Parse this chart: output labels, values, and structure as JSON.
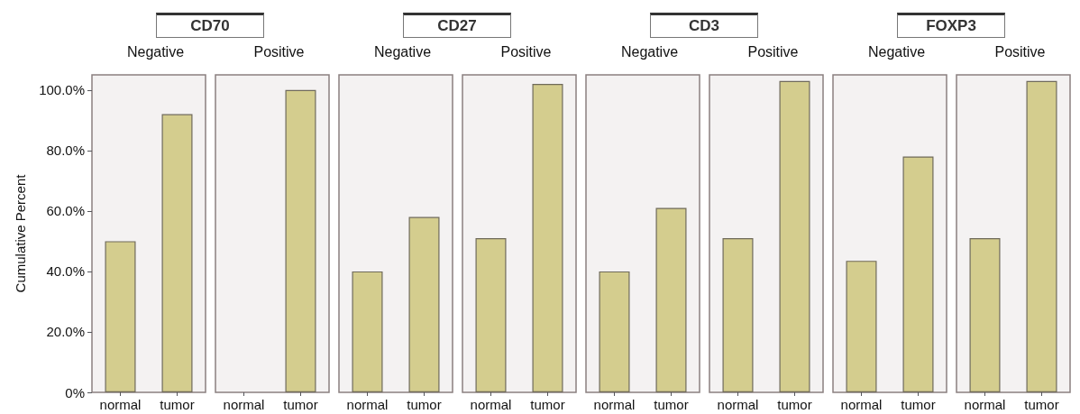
{
  "chart_data": [
    {
      "type": "bar",
      "title": "CD70",
      "subtitle": "Negative",
      "ylabel": "Cumulative Percent",
      "categories": [
        "normal",
        "tumor"
      ],
      "values": [
        50,
        92
      ],
      "color": "#d4cd8e",
      "ylim": [
        0,
        105
      ],
      "yticks": [
        {
          "value": 0,
          "label": "0%"
        },
        {
          "value": 20,
          "label": "20.0%"
        },
        {
          "value": 40,
          "label": "40.0%"
        },
        {
          "value": 60,
          "label": "60.0%"
        },
        {
          "value": 80,
          "label": "80.0%"
        },
        {
          "value": 100,
          "label": "100.0%"
        }
      ]
    },
    {
      "type": "bar",
      "subtitle": "Positive",
      "categories": [
        "normal",
        "tumor"
      ],
      "values": [
        null,
        100
      ],
      "color": "#d4cd8e",
      "ylim": [
        0,
        105
      ],
      "tick_labels": "x"
    },
    {
      "type": "bar",
      "title": "CD27",
      "subtitle": "Negative",
      "categories": [
        "normal",
        "tumor"
      ],
      "values": [
        40,
        58
      ],
      "color": "#d4cd8e",
      "ylim": [
        0,
        105
      ],
      "tick_labels": "x"
    },
    {
      "type": "bar",
      "subtitle": "Positive",
      "categories": [
        "normal",
        "tumor"
      ],
      "values": [
        51,
        102
      ],
      "color": "#d4cd8e",
      "ylim": [
        0,
        105
      ],
      "tick_labels": "x"
    },
    {
      "type": "bar",
      "title": "CD3",
      "subtitle": "Negative",
      "categories": [
        "normal",
        "tumor"
      ],
      "values": [
        40,
        61
      ],
      "color": "#d4cd8e",
      "ylim": [
        0,
        105
      ],
      "tick_labels": "x"
    },
    {
      "type": "bar",
      "subtitle": "Positive",
      "categories": [
        "normal",
        "tumor"
      ],
      "values": [
        51,
        103
      ],
      "color": "#d4cd8e",
      "ylim": [
        0,
        105
      ],
      "tick_labels": "x"
    },
    {
      "type": "bar",
      "title": "FOXP3",
      "subtitle": "Negative",
      "categories": [
        "normal",
        "tumor"
      ],
      "values": [
        43.5,
        78
      ],
      "color": "#d4cd8e",
      "ylim": [
        0,
        105
      ],
      "tick_labels": "x"
    },
    {
      "type": "bar",
      "subtitle": "Positive",
      "categories": [
        "normal",
        "tumor"
      ],
      "values": [
        51,
        103
      ],
      "color": "#d4cd8e",
      "ylim": [
        0,
        105
      ],
      "tick_labels": "x"
    }
  ]
}
